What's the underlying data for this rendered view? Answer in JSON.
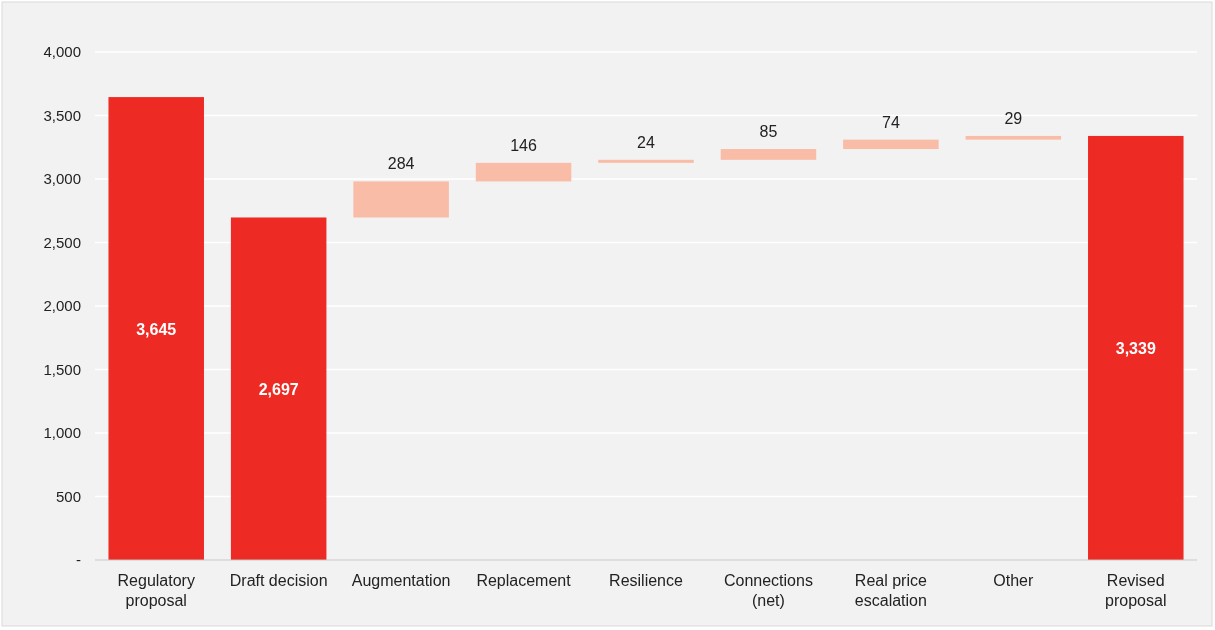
{
  "chart_data": {
    "type": "bar",
    "categories": [
      "Regulatory proposal",
      "Draft decision",
      "Augmentation",
      "Replacement",
      "Resilience",
      "Connections (net)",
      "Real price escalation",
      "Other",
      "Revised proposal"
    ],
    "values": [
      3645,
      2697,
      284,
      146,
      24,
      85,
      74,
      29,
      3339
    ],
    "base": [
      0,
      0,
      2697,
      2981,
      3127,
      3151,
      3236,
      3310,
      0
    ],
    "colors": [
      "#ee2a24",
      "#ee2a24",
      "#f9bca7",
      "#f9bca7",
      "#f9bca7",
      "#f9bca7",
      "#f9bca7",
      "#f9bca7",
      "#ee2a24"
    ],
    "value_labels": [
      "3,645",
      "2,697",
      "284",
      "146",
      "24",
      "85",
      "74",
      "29",
      "3,339"
    ],
    "ylim": [
      0,
      4000
    ],
    "yticks": [
      {
        "value": 0,
        "label": "-"
      },
      {
        "value": 500,
        "label": "500"
      },
      {
        "value": 1000,
        "label": "1,000"
      },
      {
        "value": 1500,
        "label": "1,500"
      },
      {
        "value": 2000,
        "label": "2,000"
      },
      {
        "value": 2500,
        "label": "2,500"
      },
      {
        "value": 3000,
        "label": "3,000"
      },
      {
        "value": 3500,
        "label": "3,500"
      },
      {
        "value": 4000,
        "label": "4,000"
      }
    ],
    "grid": "y"
  }
}
